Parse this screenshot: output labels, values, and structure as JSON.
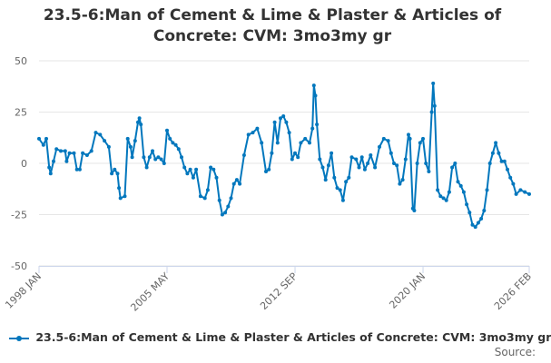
{
  "chart_data": {
    "type": "line",
    "title_lines": [
      "23.5-6:Man of Cement & Lime & Plaster & Articles of",
      "Concrete: CVM: 3mo3my gr"
    ],
    "xlabel": "",
    "ylabel": "",
    "ylim": [
      -50,
      50
    ],
    "yticks": [
      50,
      25,
      0,
      -25,
      -50
    ],
    "xtick_labels": [
      "1998 JAN",
      "2005 MAY",
      "2012 SEP",
      "2020 JAN",
      "2026 FEB"
    ],
    "xtick_dates": [
      "1998-01",
      "2005-05",
      "2012-09",
      "2020-01",
      "2026-02"
    ],
    "grid": true,
    "legend_position": "bottom-left",
    "colors": {
      "series": "#0277bd",
      "grid": "#e6e6e6",
      "axis": "#ccd6eb"
    },
    "series": [
      {
        "name": "23.5-6:Man of Cement & Lime & Plaster & Articles of Concrete: CVM: 3mo3my gr",
        "points": [
          [
            "1998-01",
            12
          ],
          [
            "1998-04",
            9
          ],
          [
            "1998-06",
            12
          ],
          [
            "1998-08",
            -2
          ],
          [
            "1998-09",
            -5
          ],
          [
            "1998-11",
            1
          ],
          [
            "1999-01",
            7
          ],
          [
            "1999-04",
            6
          ],
          [
            "1999-07",
            6
          ],
          [
            "1999-08",
            1
          ],
          [
            "1999-10",
            5
          ],
          [
            "2000-01",
            5
          ],
          [
            "2000-03",
            -3
          ],
          [
            "2000-05",
            -3
          ],
          [
            "2000-07",
            5
          ],
          [
            "2000-10",
            4
          ],
          [
            "2001-01",
            6
          ],
          [
            "2001-04",
            15
          ],
          [
            "2001-07",
            14
          ],
          [
            "2001-10",
            11
          ],
          [
            "2002-01",
            8
          ],
          [
            "2002-03",
            -5
          ],
          [
            "2002-05",
            -3
          ],
          [
            "2002-07",
            -5
          ],
          [
            "2002-08",
            -12
          ],
          [
            "2002-09",
            -17
          ],
          [
            "2002-12",
            -16
          ],
          [
            "2003-02",
            12
          ],
          [
            "2003-04",
            8
          ],
          [
            "2003-05",
            3
          ],
          [
            "2003-07",
            11
          ],
          [
            "2003-09",
            20
          ],
          [
            "2003-10",
            22
          ],
          [
            "2003-11",
            19
          ],
          [
            "2004-01",
            3
          ],
          [
            "2004-03",
            -2
          ],
          [
            "2004-05",
            3
          ],
          [
            "2004-07",
            6
          ],
          [
            "2004-09",
            2
          ],
          [
            "2004-11",
            3
          ],
          [
            "2005-01",
            2
          ],
          [
            "2005-03",
            0
          ],
          [
            "2005-05",
            16
          ],
          [
            "2005-07",
            12
          ],
          [
            "2005-09",
            10
          ],
          [
            "2005-11",
            9
          ],
          [
            "2006-01",
            7
          ],
          [
            "2006-03",
            3
          ],
          [
            "2006-05",
            -2
          ],
          [
            "2006-07",
            -5
          ],
          [
            "2006-09",
            -3
          ],
          [
            "2006-11",
            -7
          ],
          [
            "2007-01",
            -3
          ],
          [
            "2007-04",
            -16
          ],
          [
            "2007-07",
            -17
          ],
          [
            "2007-09",
            -13
          ],
          [
            "2007-11",
            -2
          ],
          [
            "2008-01",
            -3
          ],
          [
            "2008-03",
            -7
          ],
          [
            "2008-05",
            -18
          ],
          [
            "2008-07",
            -25
          ],
          [
            "2008-09",
            -24
          ],
          [
            "2008-11",
            -21
          ],
          [
            "2009-01",
            -17
          ],
          [
            "2009-03",
            -10
          ],
          [
            "2009-05",
            -8
          ],
          [
            "2009-07",
            -10
          ],
          [
            "2009-10",
            4
          ],
          [
            "2010-01",
            14
          ],
          [
            "2010-04",
            15
          ],
          [
            "2010-07",
            17
          ],
          [
            "2010-10",
            10
          ],
          [
            "2011-01",
            -4
          ],
          [
            "2011-03",
            -3
          ],
          [
            "2011-05",
            5
          ],
          [
            "2011-07",
            20
          ],
          [
            "2011-09",
            10
          ],
          [
            "2011-11",
            22
          ],
          [
            "2012-01",
            23
          ],
          [
            "2012-03",
            20
          ],
          [
            "2012-05",
            15
          ],
          [
            "2012-07",
            2
          ],
          [
            "2012-09",
            5
          ],
          [
            "2012-11",
            3
          ],
          [
            "2013-01",
            10
          ],
          [
            "2013-04",
            12
          ],
          [
            "2013-07",
            10
          ],
          [
            "2013-09",
            17
          ],
          [
            "2013-10",
            38
          ],
          [
            "2013-11",
            33
          ],
          [
            "2013-12",
            19
          ],
          [
            "2014-02",
            2
          ],
          [
            "2014-04",
            -2
          ],
          [
            "2014-06",
            -8
          ],
          [
            "2014-08",
            -1
          ],
          [
            "2014-10",
            5
          ],
          [
            "2014-12",
            -7
          ],
          [
            "2015-02",
            -12
          ],
          [
            "2015-04",
            -13
          ],
          [
            "2015-06",
            -18
          ],
          [
            "2015-08",
            -9
          ],
          [
            "2015-10",
            -7
          ],
          [
            "2015-12",
            3
          ],
          [
            "2016-03",
            2
          ],
          [
            "2016-05",
            -2
          ],
          [
            "2016-07",
            3
          ],
          [
            "2016-09",
            -3
          ],
          [
            "2016-11",
            0
          ],
          [
            "2017-01",
            4
          ],
          [
            "2017-04",
            -2
          ],
          [
            "2017-07",
            8
          ],
          [
            "2017-10",
            12
          ],
          [
            "2018-01",
            11
          ],
          [
            "2018-03",
            5
          ],
          [
            "2018-05",
            0
          ],
          [
            "2018-07",
            -1
          ],
          [
            "2018-09",
            -10
          ],
          [
            "2018-11",
            -8
          ],
          [
            "2019-01",
            2
          ],
          [
            "2019-03",
            14
          ],
          [
            "2019-04",
            12
          ],
          [
            "2019-06",
            -22
          ],
          [
            "2019-07",
            -23
          ],
          [
            "2019-09",
            0
          ],
          [
            "2019-11",
            10
          ],
          [
            "2020-01",
            12
          ],
          [
            "2020-03",
            0
          ],
          [
            "2020-05",
            -4
          ],
          [
            "2020-07",
            25
          ],
          [
            "2020-08",
            39
          ],
          [
            "2020-09",
            28
          ],
          [
            "2020-11",
            -13
          ],
          [
            "2021-01",
            -16
          ],
          [
            "2021-03",
            -17
          ],
          [
            "2021-05",
            -18
          ],
          [
            "2021-07",
            -14
          ],
          [
            "2021-09",
            -2
          ],
          [
            "2021-11",
            0
          ],
          [
            "2022-01",
            -9
          ],
          [
            "2022-03",
            -11
          ],
          [
            "2022-05",
            -14
          ],
          [
            "2022-07",
            -20
          ],
          [
            "2022-09",
            -24
          ],
          [
            "2022-11",
            -30
          ],
          [
            "2023-01",
            -31
          ],
          [
            "2023-03",
            -29
          ],
          [
            "2023-05",
            -27
          ],
          [
            "2023-07",
            -23
          ],
          [
            "2023-09",
            -13
          ],
          [
            "2023-11",
            0
          ],
          [
            "2024-01",
            5
          ],
          [
            "2024-03",
            10
          ],
          [
            "2024-05",
            5
          ],
          [
            "2024-07",
            1
          ],
          [
            "2024-09",
            1
          ],
          [
            "2024-11",
            -3
          ],
          [
            "2025-01",
            -7
          ],
          [
            "2025-03",
            -10
          ],
          [
            "2025-05",
            -15
          ],
          [
            "2025-08",
            -13
          ],
          [
            "2025-11",
            -14
          ],
          [
            "2026-02",
            -15
          ]
        ]
      }
    ],
    "legend_label": "23.5-6:Man of Cement & Lime & Plaster & Articles of Concrete: CVM: 3mo3my gr",
    "source_label": "Source:"
  }
}
